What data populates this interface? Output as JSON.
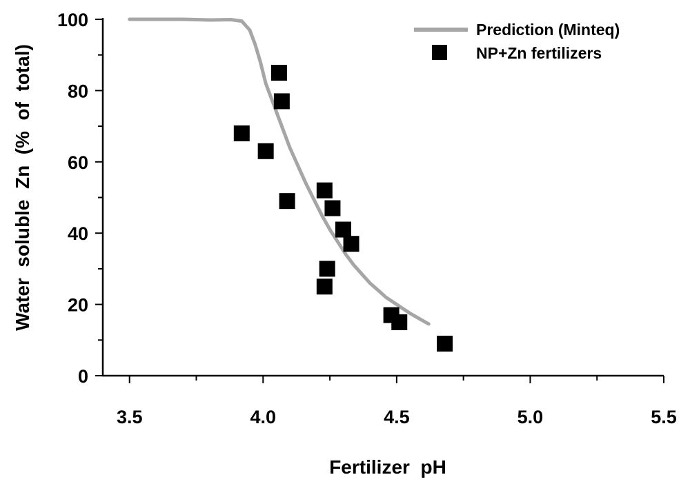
{
  "chart_data": {
    "type": "scatter",
    "xlabel": "Fertilizer  pH",
    "ylabel": "Water  soluble  Zn  (%  of  total)",
    "xlim": [
      3.4,
      5.5
    ],
    "ylim": [
      0,
      100
    ],
    "x_ticks": [
      "3.5",
      "4.0",
      "4.5",
      "5.0",
      "5.5"
    ],
    "y_ticks": [
      "0",
      "20",
      "40",
      "60",
      "80",
      "100"
    ],
    "legend_position": "top-right",
    "grid": false,
    "series": [
      {
        "name": "Prediction (Minteq)",
        "kind": "line",
        "color": "#a6a6a6",
        "x": [
          3.5,
          3.6,
          3.7,
          3.8,
          3.88,
          3.92,
          3.95,
          3.97,
          3.99,
          4.01,
          4.04,
          4.07,
          4.1,
          4.13,
          4.16,
          4.19,
          4.22,
          4.25,
          4.28,
          4.31,
          4.34,
          4.37,
          4.4,
          4.43,
          4.46,
          4.49,
          4.52,
          4.55,
          4.58,
          4.62
        ],
        "y": [
          100,
          100,
          100,
          99.8,
          99.9,
          99.5,
          97,
          93,
          88,
          82,
          76,
          70,
          64,
          59,
          54,
          49.5,
          45,
          41,
          37.5,
          34,
          31,
          28.5,
          26,
          24,
          22,
          20.5,
          19,
          17.5,
          16.2,
          14.5
        ]
      },
      {
        "name": "NP+Zn fertilizers",
        "kind": "scatter",
        "color": "#000000",
        "x": [
          3.92,
          4.01,
          4.06,
          4.07,
          4.09,
          4.23,
          4.26,
          4.3,
          4.33,
          4.24,
          4.23,
          4.48,
          4.51,
          4.68
        ],
        "y": [
          68,
          63,
          85,
          77,
          49,
          52,
          47,
          41,
          37,
          30,
          25,
          17,
          15,
          9
        ]
      }
    ]
  }
}
